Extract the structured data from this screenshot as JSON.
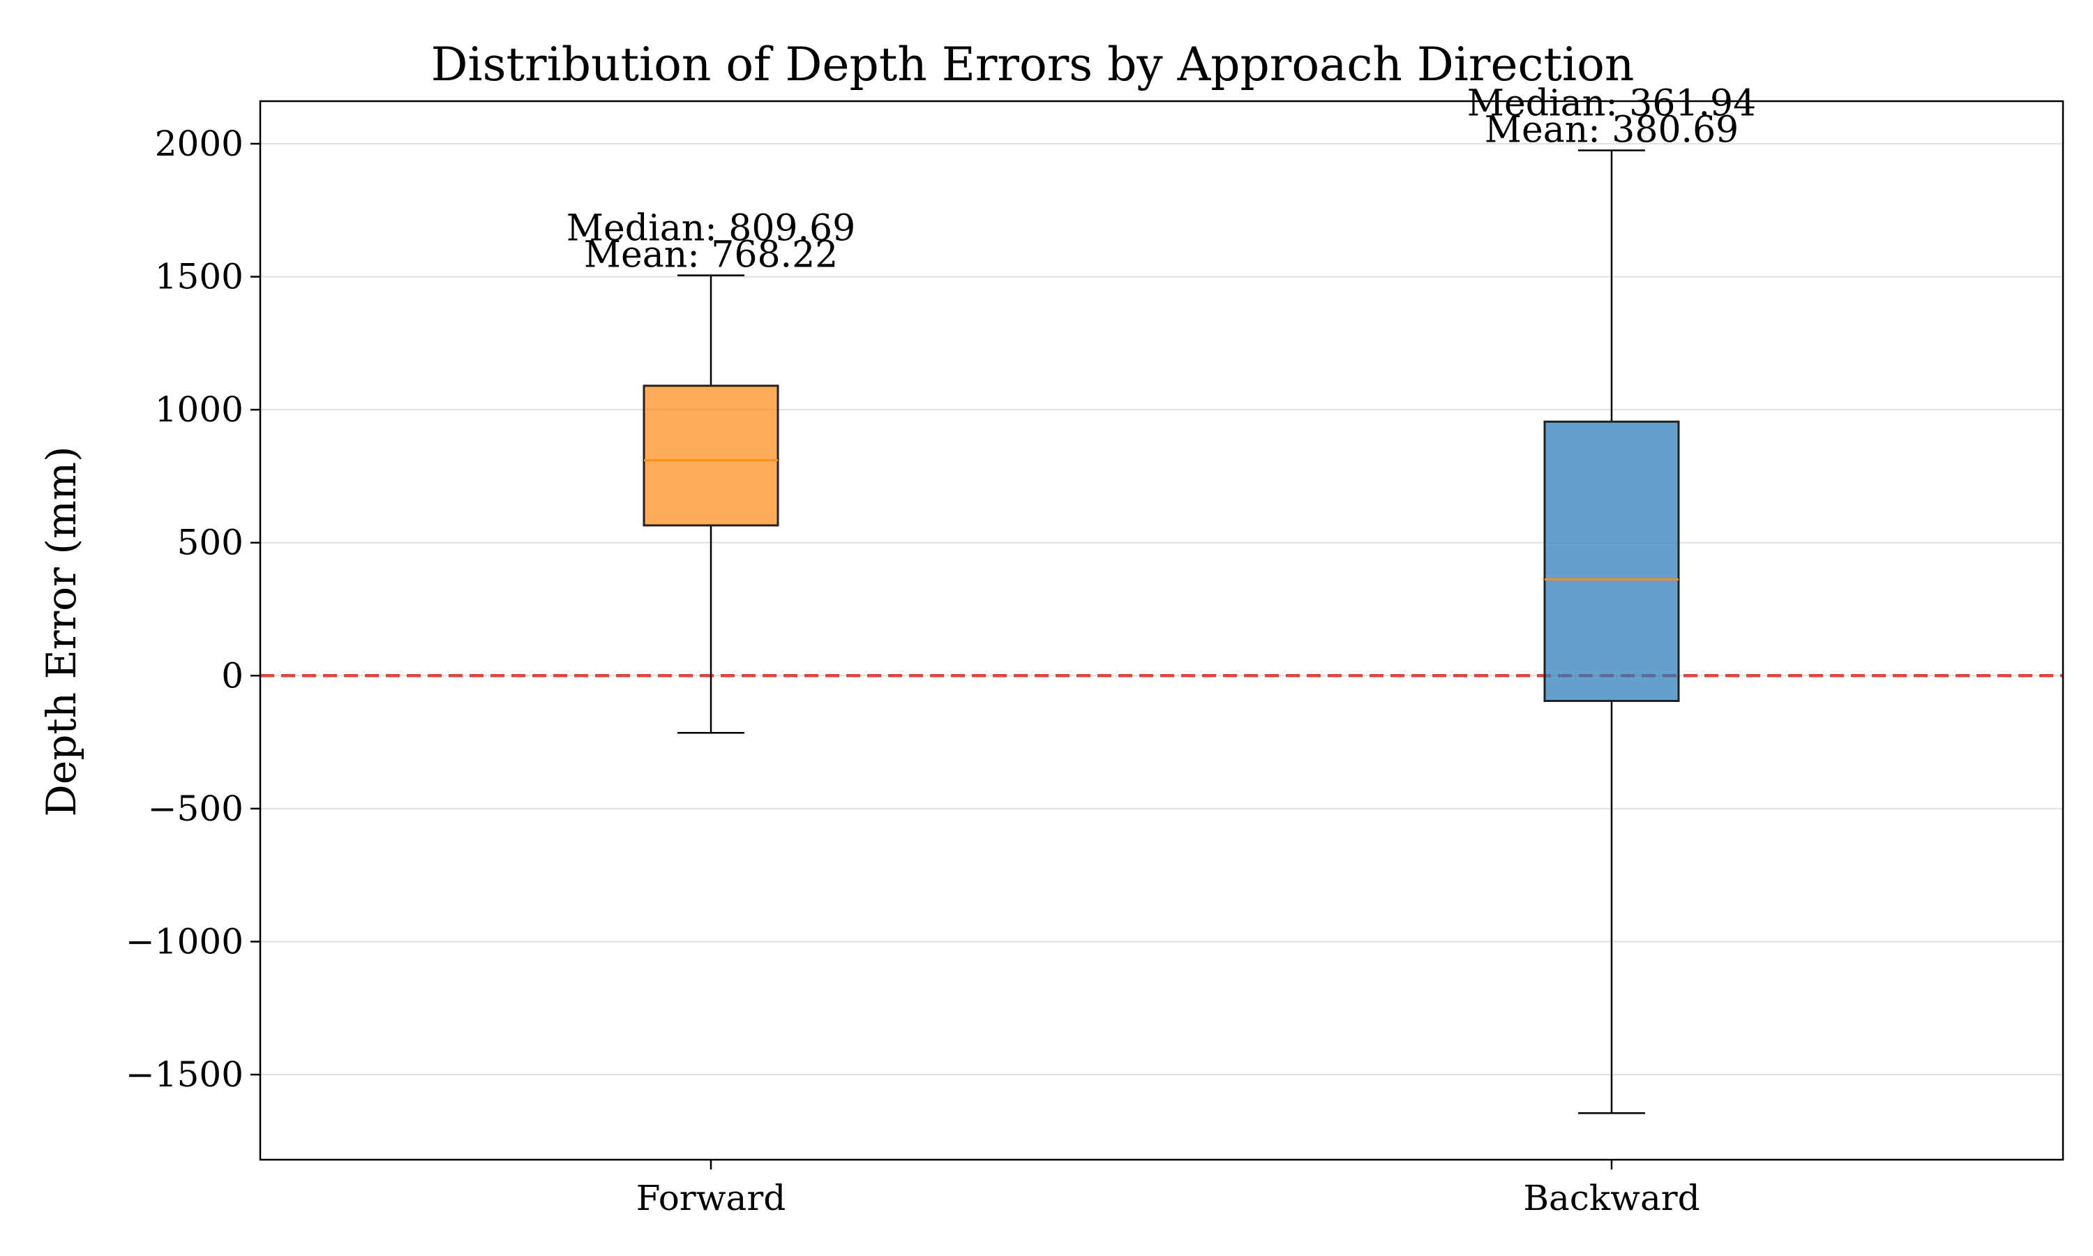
{
  "chart_data": {
    "type": "box",
    "title": "Distribution of Depth Errors by Approach Direction",
    "xlabel": "",
    "ylabel": "Depth Error (mm)",
    "ylim": [
      -1820,
      2160
    ],
    "yticks": [
      -1500,
      -1000,
      -500,
      0,
      500,
      1000,
      1500,
      2000
    ],
    "ytick_labels": [
      "−1500",
      "−1000",
      "−500",
      "0",
      "500",
      "1000",
      "1500",
      "2000"
    ],
    "grid": "y",
    "reference_line": {
      "y": 0,
      "style": "dashed",
      "color": "#e8403a"
    },
    "categories": [
      "Forward",
      "Backward"
    ],
    "boxes": [
      {
        "category": "Forward",
        "whisker_low": -215,
        "q1": 565,
        "median": 809.69,
        "q3": 1090,
        "whisker_high": 1505,
        "mean": 768.22,
        "color": "#ff8c1a",
        "annotation_median": "Median: 809.69",
        "annotation_mean": "Mean: 768.22"
      },
      {
        "category": "Backward",
        "whisker_low": -1645,
        "q1": -95,
        "median": 361.94,
        "q3": 955,
        "whisker_high": 1975,
        "mean": 380.69,
        "color": "#2a7ab8",
        "annotation_median": "Median: 361.94",
        "annotation_mean": "Mean: 380.69"
      }
    ],
    "colors": {
      "median_line": "#ff8c1a",
      "axis": "#000000",
      "grid": "#e0e0e0"
    }
  }
}
